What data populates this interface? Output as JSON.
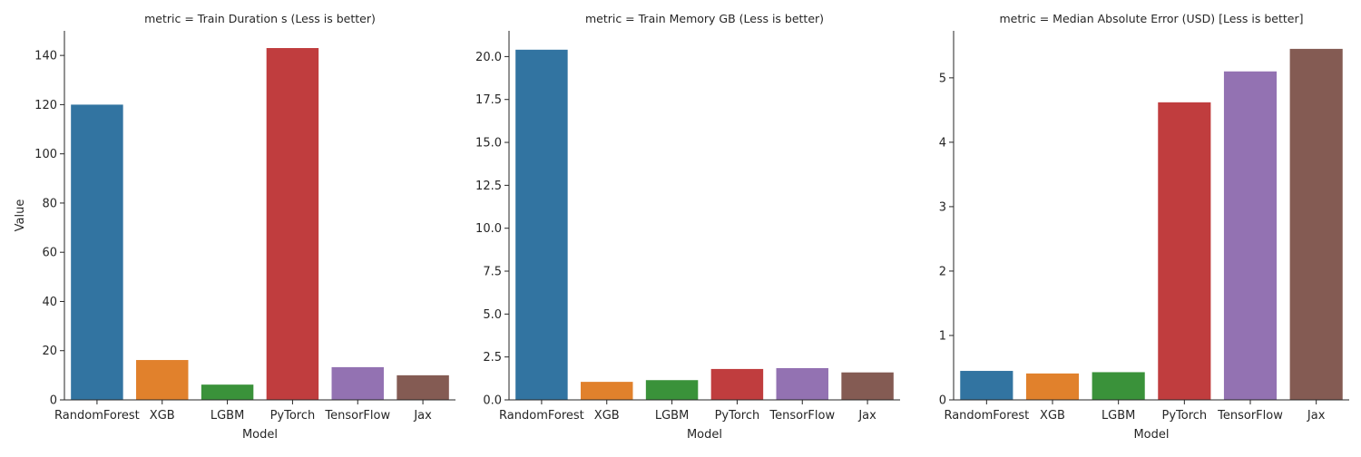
{
  "shared": {
    "xlabel": "Model",
    "ylabel": "Value",
    "colors": [
      "#3274a1",
      "#e1812c",
      "#3a923a",
      "#c03d3e",
      "#9372b2",
      "#845b53"
    ]
  },
  "chart_data": [
    {
      "type": "bar",
      "title": "metric = Train Duration s (Less is better)",
      "categories": [
        "RandomForest",
        "XGB",
        "LGBM",
        "PyTorch",
        "TensorFlow",
        "Jax"
      ],
      "values": [
        120,
        16.2,
        6.2,
        143,
        13.3,
        10
      ],
      "xlabel": "Model",
      "ylabel": "Value",
      "ylim": [
        0,
        150
      ],
      "yticks": [
        0,
        20,
        40,
        60,
        80,
        100,
        120,
        140
      ],
      "ytick_labels": [
        "0",
        "20",
        "40",
        "60",
        "80",
        "100",
        "120",
        "140"
      ],
      "grid": false,
      "legend": "none"
    },
    {
      "type": "bar",
      "title": "metric = Train Memory GB (Less is better)",
      "categories": [
        "RandomForest",
        "XGB",
        "LGBM",
        "PyTorch",
        "TensorFlow",
        "Jax"
      ],
      "values": [
        20.4,
        1.05,
        1.15,
        1.8,
        1.85,
        1.6
      ],
      "xlabel": "Model",
      "ylabel": "",
      "ylim": [
        0,
        21.5
      ],
      "yticks": [
        0,
        2.5,
        5,
        7.5,
        10,
        12.5,
        15,
        17.5,
        20
      ],
      "ytick_labels": [
        "0.0",
        "2.5",
        "5.0",
        "7.5",
        "10.0",
        "12.5",
        "15.0",
        "17.5",
        "20.0"
      ],
      "grid": false,
      "legend": "none"
    },
    {
      "type": "bar",
      "title": "metric = Median Absolute Error (USD) [Less is better]",
      "categories": [
        "RandomForest",
        "XGB",
        "LGBM",
        "PyTorch",
        "TensorFlow",
        "Jax"
      ],
      "values": [
        0.45,
        0.41,
        0.43,
        4.62,
        5.1,
        5.45
      ],
      "xlabel": "Model",
      "ylabel": "",
      "ylim": [
        0,
        5.73
      ],
      "yticks": [
        0,
        1,
        2,
        3,
        4,
        5
      ],
      "ytick_labels": [
        "0",
        "1",
        "2",
        "3",
        "4",
        "5"
      ],
      "grid": false,
      "legend": "none"
    }
  ]
}
